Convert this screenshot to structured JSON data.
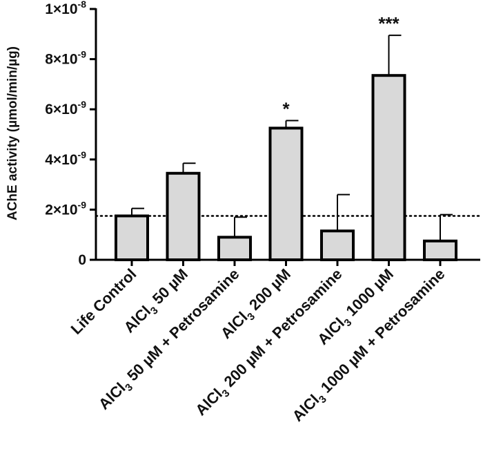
{
  "chart_data": {
    "type": "bar",
    "title": "",
    "xlabel": "",
    "ylabel": "AChE activity (µmol/min/µg)",
    "ylim": [
      0,
      1e-08
    ],
    "yticks": [
      {
        "value": 0,
        "label": "0",
        "exp": ""
      },
      {
        "value": 2e-09,
        "label": "2×10",
        "exp": "-9"
      },
      {
        "value": 4e-09,
        "label": "4×10",
        "exp": "-9"
      },
      {
        "value": 6e-09,
        "label": "6×10",
        "exp": "-9"
      },
      {
        "value": 8e-09,
        "label": "8×10",
        "exp": "-9"
      },
      {
        "value": 1e-08,
        "label": "1×10",
        "exp": "-8"
      }
    ],
    "categories": [
      {
        "pre": "Life Control",
        "sub": "",
        "post": ""
      },
      {
        "pre": "AlCl",
        "sub": "3",
        "post": " 50 µM"
      },
      {
        "pre": "AlCl",
        "sub": "3",
        "post": " 50 µM + Petrosamine"
      },
      {
        "pre": "AlCl",
        "sub": "3",
        "post": " 200 µM"
      },
      {
        "pre": "AlCl",
        "sub": "3",
        "post": " 200 µM + Petrosamine"
      },
      {
        "pre": "AlCl",
        "sub": "3",
        "post": " 1000 µM"
      },
      {
        "pre": "AlCl",
        "sub": "3",
        "post": " 1000 µM + Petrosamine"
      }
    ],
    "values": [
      1.75e-09,
      3.45e-09,
      9e-10,
      5.25e-09,
      1.15e-09,
      7.35e-09,
      7.5e-10
    ],
    "errors": [
      3e-10,
      4e-10,
      8e-10,
      3e-10,
      1.45e-09,
      1.6e-09,
      1.05e-09
    ],
    "significance": [
      "",
      "",
      "",
      "*",
      "",
      "***",
      ""
    ],
    "reference_line": 1.75e-09,
    "bar_color": "#d9d9d9",
    "edge_color": "#000000"
  }
}
